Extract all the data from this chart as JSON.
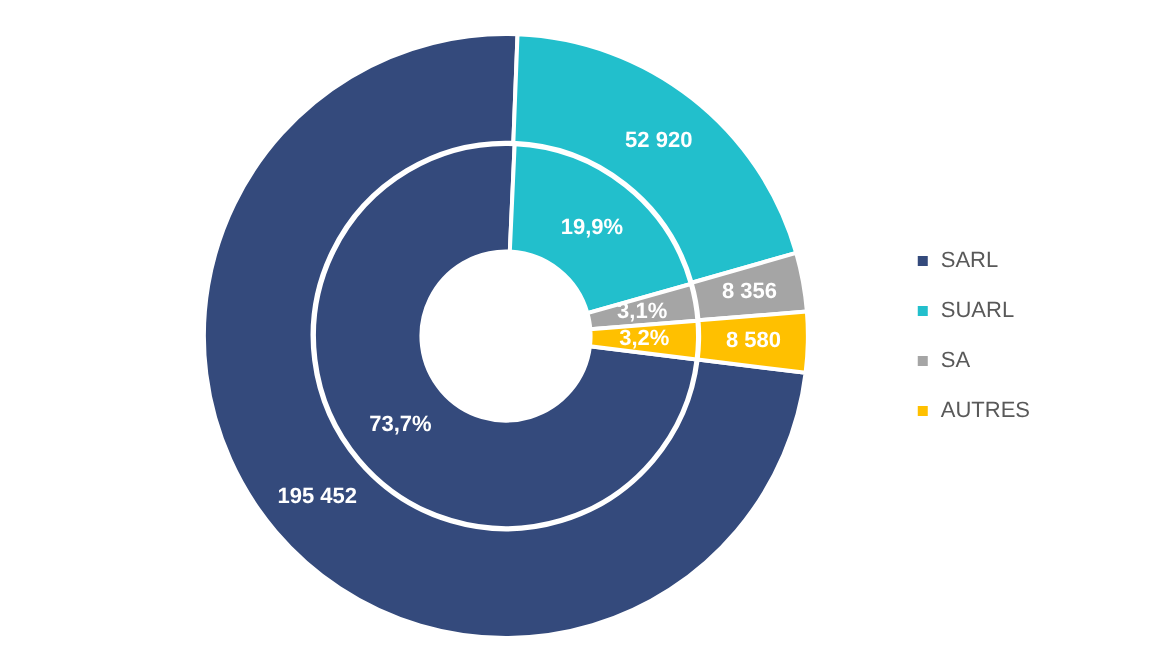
{
  "chart_data": {
    "type": "donut",
    "categories": [
      "SARL",
      "SUARL",
      "SA",
      "AUTRES"
    ],
    "colors": [
      "#344a7c",
      "#22bfcc",
      "#a5a5a5",
      "#ffc000"
    ],
    "series": [
      {
        "values": [
          73.7,
          19.9,
          3.1,
          3.2
        ],
        "value_labels": [
          "73,7%",
          "19,9%",
          "3,1%",
          "3,2%"
        ]
      },
      {
        "values": [
          195452,
          52920,
          8356,
          8580
        ],
        "value_labels": [
          "195 452",
          "52 920",
          "8 356",
          "8 580"
        ]
      }
    ],
    "legend": "right"
  }
}
